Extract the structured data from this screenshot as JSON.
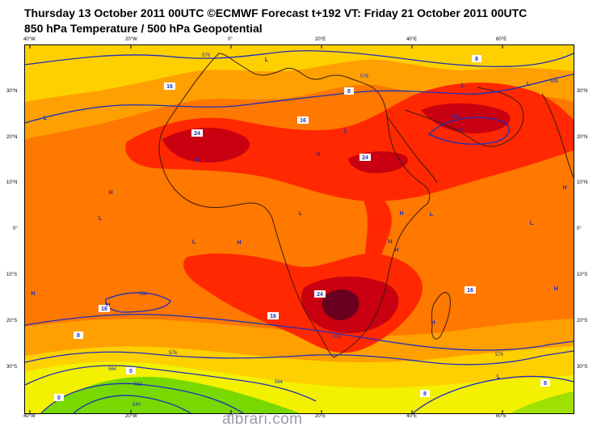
{
  "header": {
    "title": "Thursday 13 October 2011 00UTC ©ECMWF Forecast t+192 VT: Friday 21 October 2011 00UTC",
    "subtitle": "850 hPa Temperature / 500 hPa Geopotential"
  },
  "axes": {
    "top_lon": [
      "40°W",
      "20°W",
      "0°",
      "20°E",
      "40°E",
      "60°E"
    ],
    "bottom_lon": [
      "40°W",
      "20°W",
      "0°",
      "20°E",
      "40°E",
      "60°E"
    ],
    "left_lat": [
      "30°N",
      "20°N",
      "10°N",
      "0°",
      "10°S",
      "20°S",
      "30°S"
    ],
    "right_lat": [
      "30°N",
      "20°N",
      "10°N",
      "0°",
      "10°S",
      "20°S",
      "30°S"
    ]
  },
  "colors": {
    "t8": "#ffd000",
    "t12": "#ffa000",
    "t16": "#ff7800",
    "t20": "#ff2800",
    "t24": "#c80010",
    "t28": "#6a0020",
    "cold_yellow": "#f3f000",
    "cold_green": "#78d800",
    "contour": "#1e2fb8",
    "coast": "#3a1a10"
  },
  "isotherm_labels": [
    {
      "label": "16"
    },
    {
      "label": "16"
    },
    {
      "label": "24"
    },
    {
      "label": "24"
    },
    {
      "label": "8"
    },
    {
      "label": "16"
    },
    {
      "label": "16"
    },
    {
      "label": "24"
    },
    {
      "label": "16"
    },
    {
      "label": "8"
    },
    {
      "label": "8"
    },
    {
      "label": "8"
    },
    {
      "label": "8"
    },
    {
      "label": "0"
    },
    {
      "label": "0"
    }
  ],
  "geopotential_labels": [
    {
      "label": "576"
    },
    {
      "label": "576"
    },
    {
      "label": "576"
    },
    {
      "label": "576"
    },
    {
      "label": "588"
    },
    {
      "label": "588"
    },
    {
      "label": "588"
    },
    {
      "label": "564"
    },
    {
      "label": "564"
    },
    {
      "label": "552"
    },
    {
      "label": "576"
    },
    {
      "label": "540"
    }
  ],
  "pressure_markers": [
    {
      "label": "L"
    },
    {
      "label": "L"
    },
    {
      "label": "H"
    },
    {
      "label": "H"
    },
    {
      "label": "L"
    },
    {
      "label": "H"
    },
    {
      "label": "H"
    },
    {
      "label": "L"
    },
    {
      "label": "L"
    },
    {
      "label": "H"
    },
    {
      "label": "L"
    },
    {
      "label": "H"
    },
    {
      "label": "L"
    },
    {
      "label": "H"
    },
    {
      "label": "H"
    },
    {
      "label": "H"
    },
    {
      "label": "H"
    },
    {
      "label": "H"
    },
    {
      "label": "H"
    },
    {
      "label": "L"
    },
    {
      "label": "L"
    },
    {
      "label": "L"
    },
    {
      "label": "H"
    },
    {
      "label": "L"
    }
  ],
  "watermark": "albrari.com"
}
